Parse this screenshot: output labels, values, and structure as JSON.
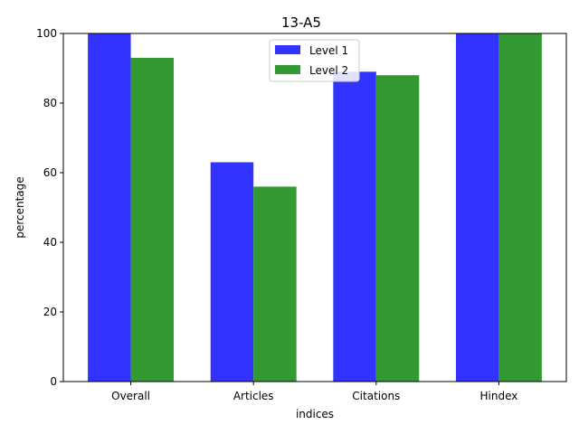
{
  "chart_data": {
    "type": "bar",
    "title": "13-A5",
    "xlabel": "indices",
    "ylabel": "percentage",
    "categories": [
      "Overall",
      "Articles",
      "Citations",
      "Hindex"
    ],
    "series": [
      {
        "name": "Level 1",
        "values": [
          100,
          63,
          89,
          100
        ],
        "color": "#3333ff"
      },
      {
        "name": "Level 2",
        "values": [
          93,
          56,
          88,
          100
        ],
        "color": "#339933"
      }
    ],
    "ylim": [
      0,
      100
    ],
    "yticks": [
      0,
      20,
      40,
      60,
      80,
      100
    ],
    "grid": false,
    "legend_position": "top-center"
  }
}
